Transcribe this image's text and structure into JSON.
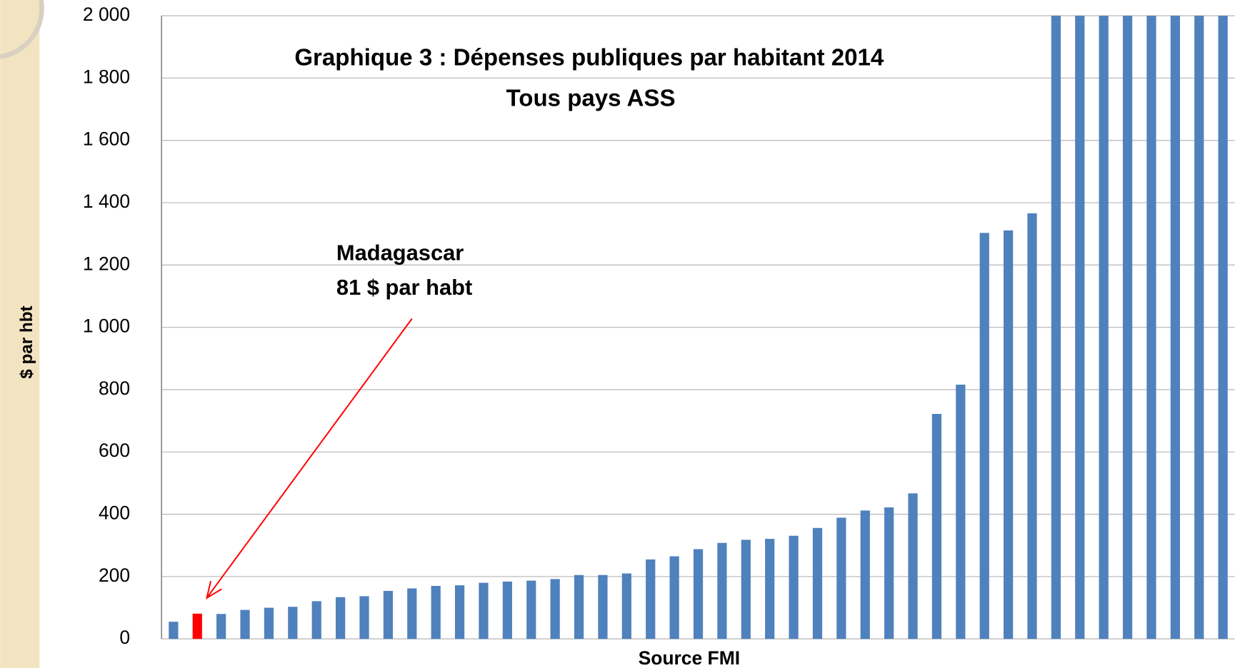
{
  "chart_data": {
    "type": "bar",
    "title": "Graphique 3 : Dépenses publiques par habitant 2014",
    "subtitle": "Tous pays ASS",
    "y_label": "$ par hbt",
    "x_label": "Source FMI",
    "annotation": {
      "lines": [
        "Madagascar",
        "81 $ par habt"
      ],
      "target": 1,
      "color": "#ff0000"
    },
    "categories": [
      null,
      null,
      null,
      null,
      null,
      null,
      null,
      null,
      null,
      null,
      null,
      null,
      null,
      null,
      null,
      null,
      null,
      null,
      null,
      null,
      null,
      null,
      null,
      null,
      null,
      null,
      null,
      null,
      null,
      null,
      null,
      null,
      null,
      null,
      null,
      null,
      null,
      null,
      null,
      null,
      null,
      null,
      null,
      null,
      null
    ],
    "values": [
      55,
      81,
      80,
      93,
      100,
      103,
      121,
      134,
      137,
      154,
      162,
      170,
      172,
      180,
      184,
      187,
      192,
      205,
      205,
      210,
      255,
      265,
      288,
      308,
      318,
      321,
      331,
      356,
      389,
      412,
      422,
      467,
      722,
      816,
      1303,
      1311,
      1366,
      2000,
      2000,
      2000,
      2000,
      2000,
      2000,
      2000,
      2000
    ],
    "colors": [
      "#4f81bd",
      "#ff0000",
      "#4f81bd",
      "#4f81bd",
      "#4f81bd",
      "#4f81bd",
      "#4f81bd",
      "#4f81bd",
      "#4f81bd",
      "#4f81bd",
      "#4f81bd",
      "#4f81bd",
      "#4f81bd",
      "#4f81bd",
      "#4f81bd",
      "#4f81bd",
      "#4f81bd",
      "#4f81bd",
      "#4f81bd",
      "#4f81bd",
      "#4f81bd",
      "#4f81bd",
      "#4f81bd",
      "#4f81bd",
      "#4f81bd",
      "#4f81bd",
      "#4f81bd",
      "#4f81bd",
      "#4f81bd",
      "#4f81bd",
      "#4f81bd",
      "#4f81bd",
      "#4f81bd",
      "#4f81bd",
      "#4f81bd",
      "#4f81bd",
      "#4f81bd",
      "#4f81bd",
      "#4f81bd",
      "#4f81bd",
      "#4f81bd",
      "#4f81bd",
      "#4f81bd",
      "#4f81bd",
      "#4f81bd"
    ],
    "ylim": [
      0,
      2000
    ],
    "yticks": [
      0,
      200,
      400,
      600,
      800,
      {
        "value": 1000,
        "label": "1 000"
      },
      {
        "value": 1200,
        "label": "1 200"
      },
      {
        "value": 1400,
        "label": "1 400"
      },
      {
        "value": 1600,
        "label": "1 600"
      },
      {
        "value": 1800,
        "label": "1 800"
      },
      {
        "value": 2000,
        "label": "2 000"
      }
    ],
    "grid": true
  }
}
